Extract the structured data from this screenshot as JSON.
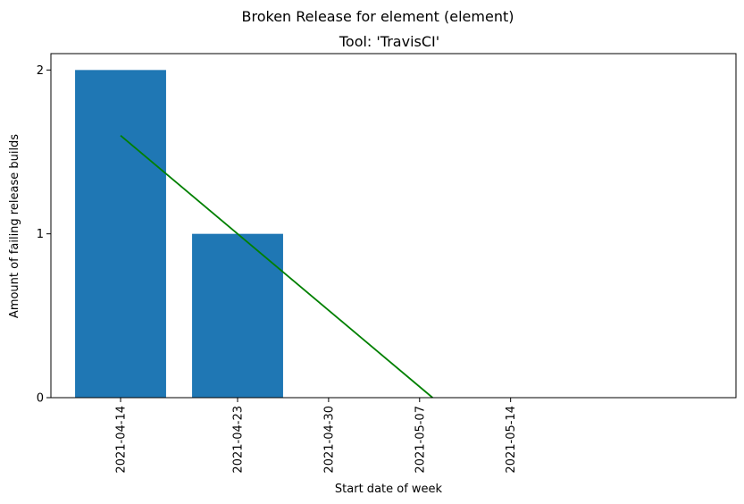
{
  "chart_data": {
    "type": "bar",
    "suptitle": "Broken Release for element (element)",
    "title": "Tool: 'TravisCI'",
    "xlabel": "Start date of week",
    "ylabel": "Amount of failing release builds",
    "categories": [
      "2021-04-14",
      "2021-04-23",
      "2021-04-30",
      "2021-05-07",
      "2021-05-14"
    ],
    "values": [
      2,
      1,
      0,
      0,
      0
    ],
    "bar_color": "#1f77b4",
    "trend_line": {
      "color": "#008000",
      "x": [
        "2021-04-14",
        "2021-05-08"
      ],
      "y": [
        1.6,
        0
      ]
    },
    "yticks": [
      0,
      1,
      2
    ],
    "ylim": [
      0,
      2.1
    ],
    "grid": false,
    "legend": "none"
  }
}
